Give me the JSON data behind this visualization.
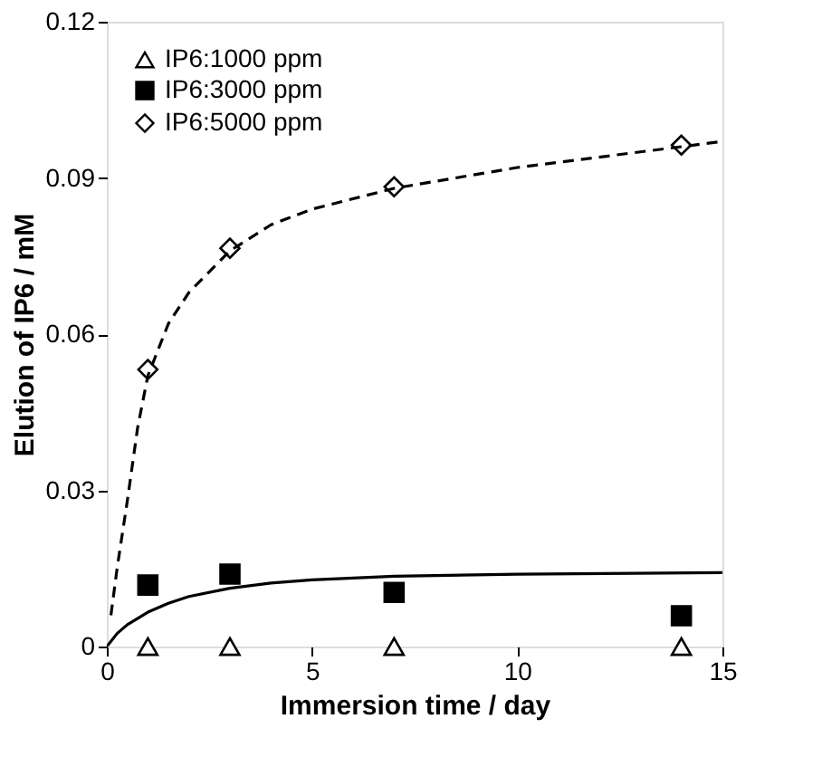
{
  "chart_data": {
    "type": "scatter",
    "xlabel": "Immersion time / day",
    "ylabel": "Elution of IP6 / mM",
    "xlim": [
      0,
      15
    ],
    "xticks": [
      0,
      5,
      10,
      15
    ],
    "ylim": [
      0,
      0.12
    ],
    "yticks": [
      0,
      0.03,
      0.06,
      0.09,
      0.12
    ],
    "grid": false,
    "legend": "top left",
    "series": [
      {
        "name": "IP6:1000 ppm",
        "marker": "triangle",
        "color": "#000000",
        "x": [
          1,
          3,
          7,
          14
        ],
        "values": [
          0,
          0,
          0,
          0
        ]
      },
      {
        "name": "IP6:3000 ppm",
        "marker": "square",
        "color": "#000000",
        "x": [
          1,
          3,
          7,
          14
        ],
        "values": [
          0.0118,
          0.0139,
          0.0104,
          0.0059
        ]
      },
      {
        "name": "IP6:5000 ppm",
        "marker": "diamond",
        "color": "#000000",
        "x": [
          1,
          3,
          7,
          14
        ],
        "values": [
          0.0532,
          0.0765,
          0.0883,
          0.0963
        ]
      },
      {
        "type": "line",
        "line_style": "solid",
        "color": "#000000",
        "x": [
          0,
          0.25,
          0.5,
          1,
          1.5,
          2,
          3,
          4,
          5,
          7,
          10,
          15
        ],
        "values": [
          0,
          0.0025,
          0.0042,
          0.0066,
          0.0083,
          0.0096,
          0.0112,
          0.0122,
          0.0128,
          0.0135,
          0.0139,
          0.0142
        ]
      },
      {
        "type": "line",
        "line_style": "dashed",
        "color": "#000000",
        "x": [
          0.1,
          0.25,
          0.5,
          0.75,
          1,
          1.5,
          2,
          3,
          4,
          5,
          7,
          10,
          14,
          15
        ],
        "values": [
          0.006,
          0.015,
          0.028,
          0.042,
          0.052,
          0.062,
          0.068,
          0.076,
          0.081,
          0.084,
          0.088,
          0.092,
          0.096,
          0.097
        ]
      }
    ]
  }
}
